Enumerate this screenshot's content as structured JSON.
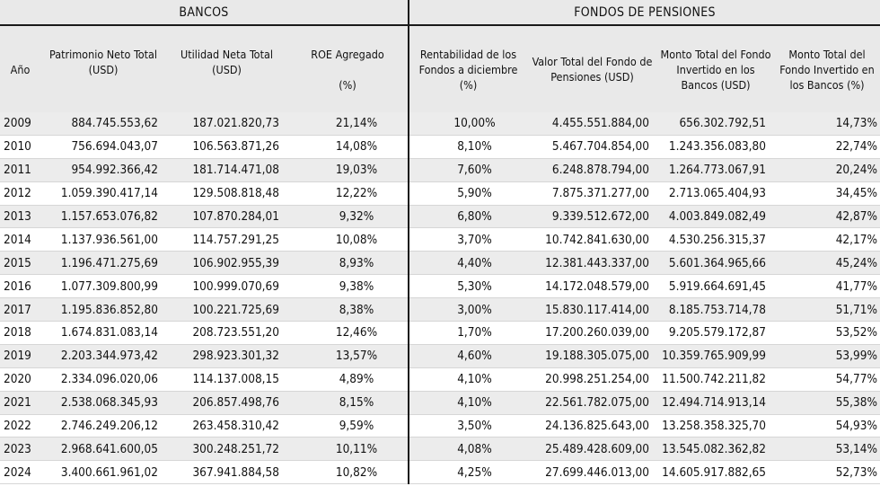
{
  "groups": {
    "bancos": "BANCOS",
    "fondos": "FONDOS DE PENSIONES"
  },
  "columns": {
    "year": "Año",
    "patrimonio": "Patrimonio Neto Total (USD)",
    "utilidad": "Utilidad Neta Total (USD)",
    "roe": "ROE Agregado",
    "roe_unit": "(%)",
    "rentabilidad": "Rentabilidad de los Fondos a diciembre (%)",
    "valor_total": "Valor Total del Fondo de Pensiones (USD)",
    "monto_usd": "Monto Total del Fondo Invertido en los Bancos (USD)",
    "monto_pct": "Monto Total del Fondo Invertido en los Bancos (%)"
  },
  "rows": [
    {
      "year": "2009",
      "patrimonio": "884.745.553,62",
      "utilidad": "187.021.820,73",
      "roe": "21,14%",
      "rentabilidad": "10,00%",
      "valor_total": "4.455.551.884,00",
      "monto_usd": "656.302.792,51",
      "monto_pct": "14,73%"
    },
    {
      "year": "2010",
      "patrimonio": "756.694.043,07",
      "utilidad": "106.563.871,26",
      "roe": "14,08%",
      "rentabilidad": "8,10%",
      "valor_total": "5.467.704.854,00",
      "monto_usd": "1.243.356.083,80",
      "monto_pct": "22,74%"
    },
    {
      "year": "2011",
      "patrimonio": "954.992.366,42",
      "utilidad": "181.714.471,08",
      "roe": "19,03%",
      "rentabilidad": "7,60%",
      "valor_total": "6.248.878.794,00",
      "monto_usd": "1.264.773.067,91",
      "monto_pct": "20,24%"
    },
    {
      "year": "2012",
      "patrimonio": "1.059.390.417,14",
      "utilidad": "129.508.818,48",
      "roe": "12,22%",
      "rentabilidad": "5,90%",
      "valor_total": "7.875.371.277,00",
      "monto_usd": "2.713.065.404,93",
      "monto_pct": "34,45%"
    },
    {
      "year": "2013",
      "patrimonio": "1.157.653.076,82",
      "utilidad": "107.870.284,01",
      "roe": "9,32%",
      "rentabilidad": "6,80%",
      "valor_total": "9.339.512.672,00",
      "monto_usd": "4.003.849.082,49",
      "monto_pct": "42,87%"
    },
    {
      "year": "2014",
      "patrimonio": "1.137.936.561,00",
      "utilidad": "114.757.291,25",
      "roe": "10,08%",
      "rentabilidad": "3,70%",
      "valor_total": "10.742.841.630,00",
      "monto_usd": "4.530.256.315,37",
      "monto_pct": "42,17%"
    },
    {
      "year": "2015",
      "patrimonio": "1.196.471.275,69",
      "utilidad": "106.902.955,39",
      "roe": "8,93%",
      "rentabilidad": "4,40%",
      "valor_total": "12.381.443.337,00",
      "monto_usd": "5.601.364.965,66",
      "monto_pct": "45,24%"
    },
    {
      "year": "2016",
      "patrimonio": "1.077.309.800,99",
      "utilidad": "100.999.070,69",
      "roe": "9,38%",
      "rentabilidad": "5,30%",
      "valor_total": "14.172.048.579,00",
      "monto_usd": "5.919.664.691,45",
      "monto_pct": "41,77%"
    },
    {
      "year": "2017",
      "patrimonio": "1.195.836.852,80",
      "utilidad": "100.221.725,69",
      "roe": "8,38%",
      "rentabilidad": "3,00%",
      "valor_total": "15.830.117.414,00",
      "monto_usd": "8.185.753.714,78",
      "monto_pct": "51,71%"
    },
    {
      "year": "2018",
      "patrimonio": "1.674.831.083,14",
      "utilidad": "208.723.551,20",
      "roe": "12,46%",
      "rentabilidad": "1,70%",
      "valor_total": "17.200.260.039,00",
      "monto_usd": "9.205.579.172,87",
      "monto_pct": "53,52%"
    },
    {
      "year": "2019",
      "patrimonio": "2.203.344.973,42",
      "utilidad": "298.923.301,32",
      "roe": "13,57%",
      "rentabilidad": "4,60%",
      "valor_total": "19.188.305.075,00",
      "monto_usd": "10.359.765.909,99",
      "monto_pct": "53,99%"
    },
    {
      "year": "2020",
      "patrimonio": "2.334.096.020,06",
      "utilidad": "114.137.008,15",
      "roe": "4,89%",
      "rentabilidad": "4,10%",
      "valor_total": "20.998.251.254,00",
      "monto_usd": "11.500.742.211,82",
      "monto_pct": "54,77%"
    },
    {
      "year": "2021",
      "patrimonio": "2.538.068.345,93",
      "utilidad": "206.857.498,76",
      "roe": "8,15%",
      "rentabilidad": "4,10%",
      "valor_total": "22.561.782.075,00",
      "monto_usd": "12.494.714.913,14",
      "monto_pct": "55,38%"
    },
    {
      "year": "2022",
      "patrimonio": "2.746.249.206,12",
      "utilidad": "263.458.310,42",
      "roe": "9,59%",
      "rentabilidad": "3,50%",
      "valor_total": "24.136.825.643,00",
      "monto_usd": "13.258.358.325,70",
      "monto_pct": "54,93%"
    },
    {
      "year": "2023",
      "patrimonio": "2.968.641.600,05",
      "utilidad": "300.248.251,72",
      "roe": "10,11%",
      "rentabilidad": "4,08%",
      "valor_total": "25.489.428.609,00",
      "monto_usd": "13.545.082.362,82",
      "monto_pct": "53,14%"
    },
    {
      "year": "2024",
      "patrimonio": "3.400.661.961,02",
      "utilidad": "367.941.884,58",
      "roe": "10,82%",
      "rentabilidad": "4,25%",
      "valor_total": "27.699.446.013,00",
      "monto_usd": "14.605.917.882,65",
      "monto_pct": "52,73%"
    }
  ]
}
